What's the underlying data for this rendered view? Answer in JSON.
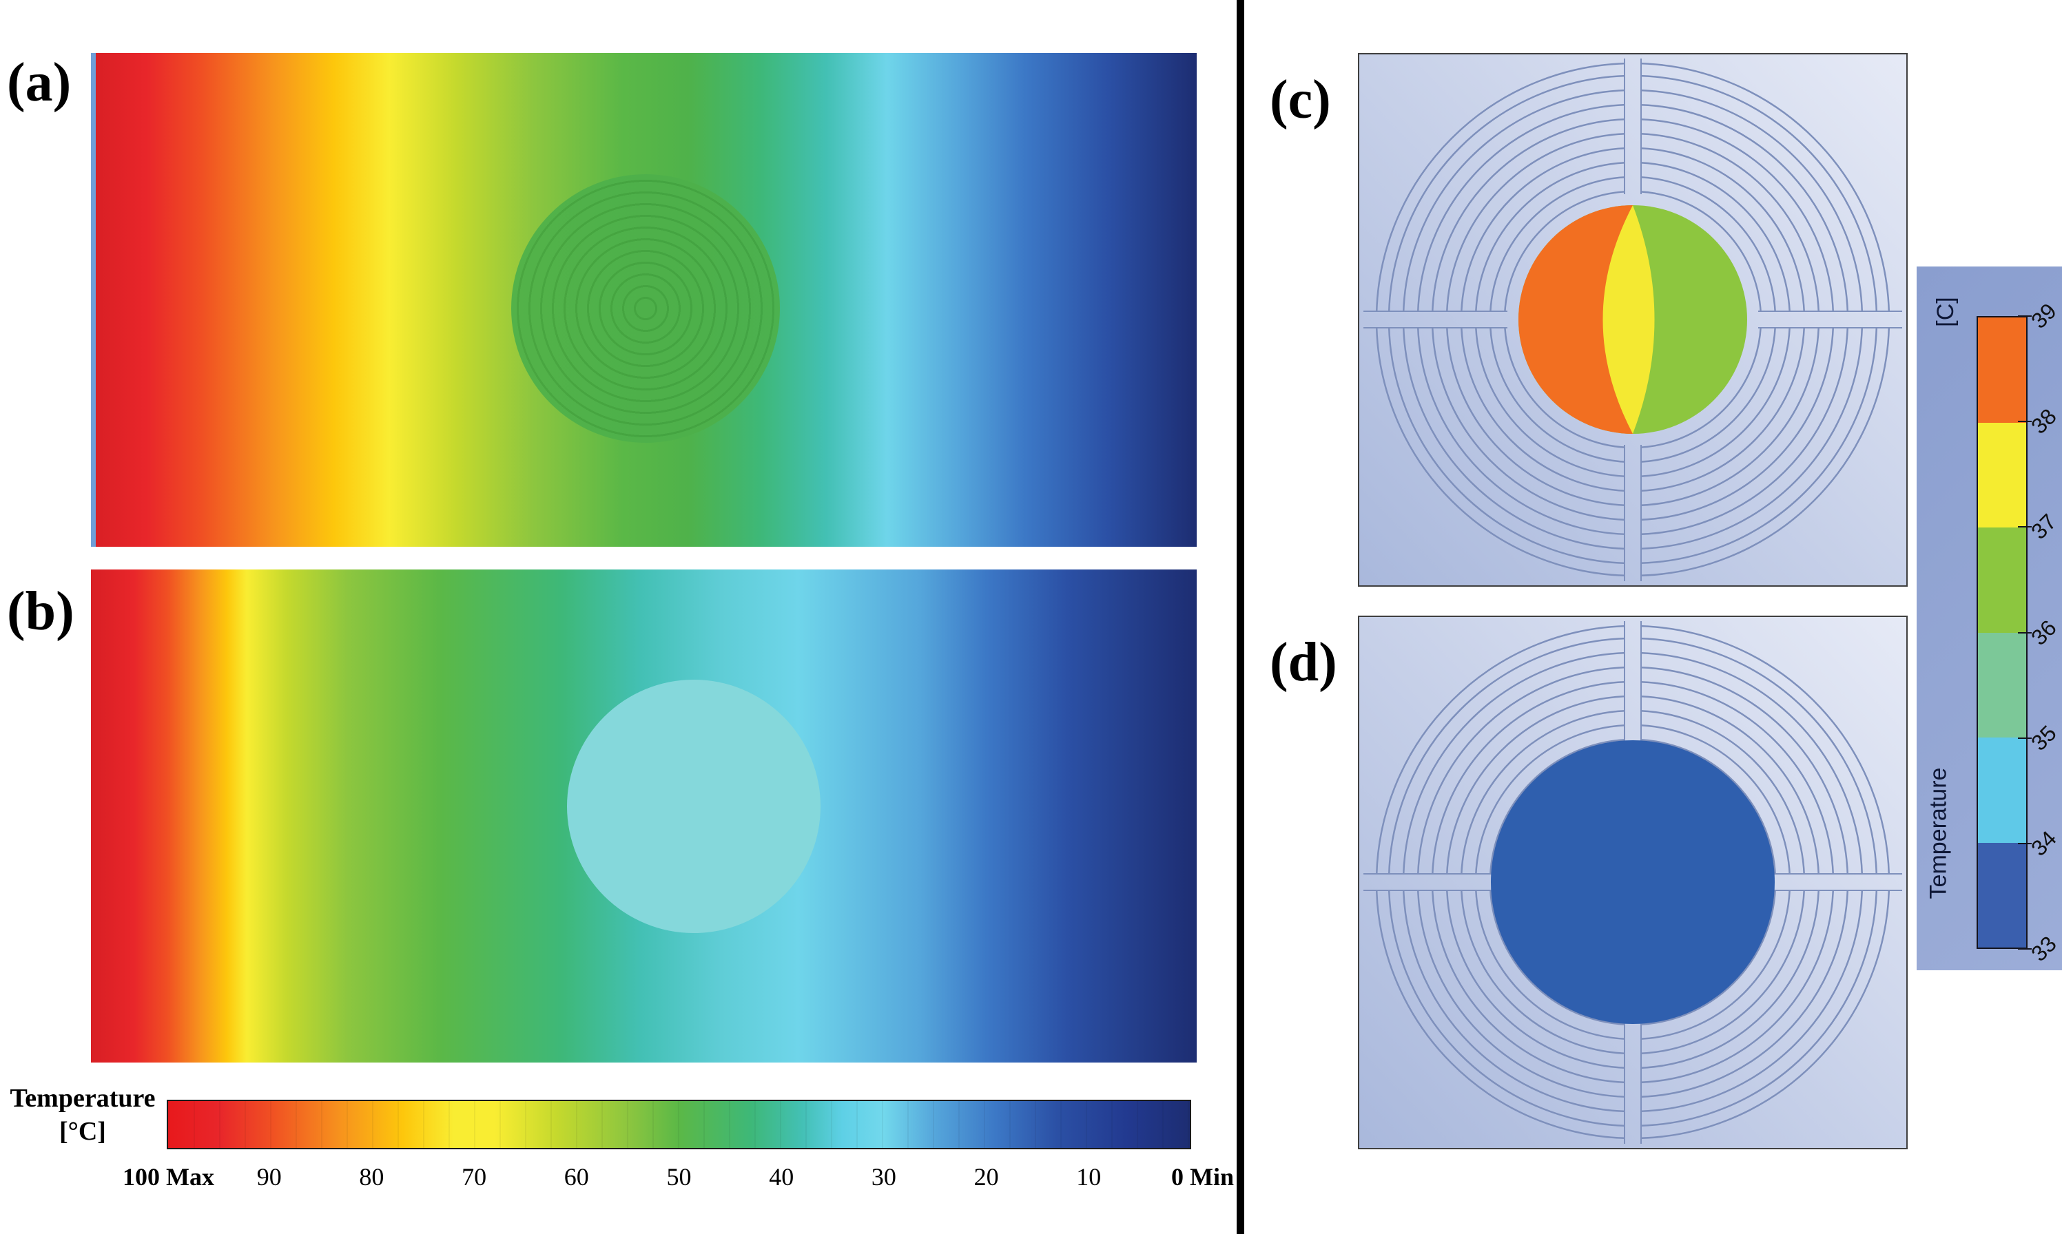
{
  "figure": {
    "panel_labels": {
      "a": "(a)",
      "b": "(b)",
      "c": "(c)",
      "d": "(d)"
    },
    "hbar": {
      "title_line1": "Temperature",
      "title_line2": "[°C]",
      "max_label": "100 Max",
      "min_label": "0 Min",
      "ticks": [
        {
          "label": "90",
          "pos": 10
        },
        {
          "label": "80",
          "pos": 20
        },
        {
          "label": "70",
          "pos": 30
        },
        {
          "label": "60",
          "pos": 40
        },
        {
          "label": "50",
          "pos": 50
        },
        {
          "label": "40",
          "pos": 60
        },
        {
          "label": "30",
          "pos": 70
        },
        {
          "label": "20",
          "pos": 80
        },
        {
          "label": "10",
          "pos": 90
        }
      ]
    },
    "vbar": {
      "unit_label": "[C]",
      "axis_label": "Temperature",
      "ticks": [
        "33",
        "34",
        "35",
        "36",
        "37",
        "38",
        "39"
      ],
      "band_colors_bottom_to_top": [
        "#3a5fae",
        "#5fc9e8",
        "#7cc898",
        "#8cc63f",
        "#f5ec30",
        "#f26d21"
      ]
    },
    "colors": {
      "hot_red": "#e8262a",
      "orange": "#f7941d",
      "yellow": "#f9ed32",
      "green": "#5bb847",
      "teal": "#43c0b4",
      "cyan": "#6fd5ea",
      "blue": "#3c78c6",
      "navy": "#1d2d72",
      "panel_a_disk": "#4db04a",
      "panel_b_disk": "#85d8db",
      "device_disk_orange": "#f26f21",
      "device_disk_yellow": "#f4e932",
      "device_disk_green": "#8dc63f",
      "device_disk_blue": "#2f5fae",
      "device_background": "#b5c2e0",
      "legend_panel": "#93a6d3"
    }
  },
  "chart_data": [
    {
      "type": "heatmap",
      "name": "panel_a_temperature_field",
      "title": "(a) Simulated temperature field, hot left edge to cold right edge",
      "value_range": {
        "min": 0,
        "max": 100,
        "unit": "°C",
        "min_label": "0 Min",
        "max_label": "100 Max"
      },
      "colorbar_ticks": [
        100,
        90,
        80,
        70,
        60,
        50,
        40,
        30,
        20,
        10,
        0
      ],
      "gradient": "left boundary 100 °C (red) decreasing monotonically to right boundary 0 °C (dark blue)",
      "embedded_disk": {
        "center_x_fraction": 0.5,
        "center_y_fraction": 0.52,
        "radius_fraction_of_height": 0.27,
        "appearance": "green disk with faint concentric rings, approx 50 °C"
      }
    },
    {
      "type": "heatmap",
      "name": "panel_b_temperature_field",
      "title": "(b) Simulated temperature field with isotherms compressed toward left edge",
      "value_range": {
        "min": 0,
        "max": 100,
        "unit": "°C"
      },
      "colorbar_ticks": [
        100,
        90,
        80,
        70,
        60,
        50,
        40,
        30,
        20,
        10,
        0
      ],
      "gradient": "left boundary 100 °C (red, narrow band) to right boundary 0 °C (dark blue)",
      "embedded_disk": {
        "center_x_fraction": 0.545,
        "center_y_fraction": 0.48,
        "radius_fraction_of_height": 0.26,
        "appearance": "uniform light-cyan disk, approx 40 °C"
      }
    },
    {
      "type": "heatmap",
      "name": "panel_c_device_field",
      "title": "(c) Close-up of concentric-ring device with heated central disk",
      "value_range": {
        "min": 33,
        "max": 39,
        "unit": "C"
      },
      "colorbar_ticks": [
        33,
        34,
        35,
        36,
        37,
        38,
        39
      ],
      "disk_temperatures": {
        "left_lobe": "38-39 C (orange)",
        "center_band": "37-38 C (yellow lens)",
        "right_lobe": "36-37 C (green)"
      },
      "surroundings": "uniform cool substrate near 33-34 C (periwinkle background)"
    },
    {
      "type": "heatmap",
      "name": "panel_d_device_field",
      "title": "(d) Close-up of concentric-ring device with uniform cold disk",
      "value_range": {
        "min": 33,
        "max": 39,
        "unit": "C"
      },
      "colorbar_ticks": [
        33,
        34,
        35,
        36,
        37,
        38,
        39
      ],
      "disk_temperatures": {
        "disk": "33-34 C (dark blue, uniform)"
      }
    }
  ]
}
